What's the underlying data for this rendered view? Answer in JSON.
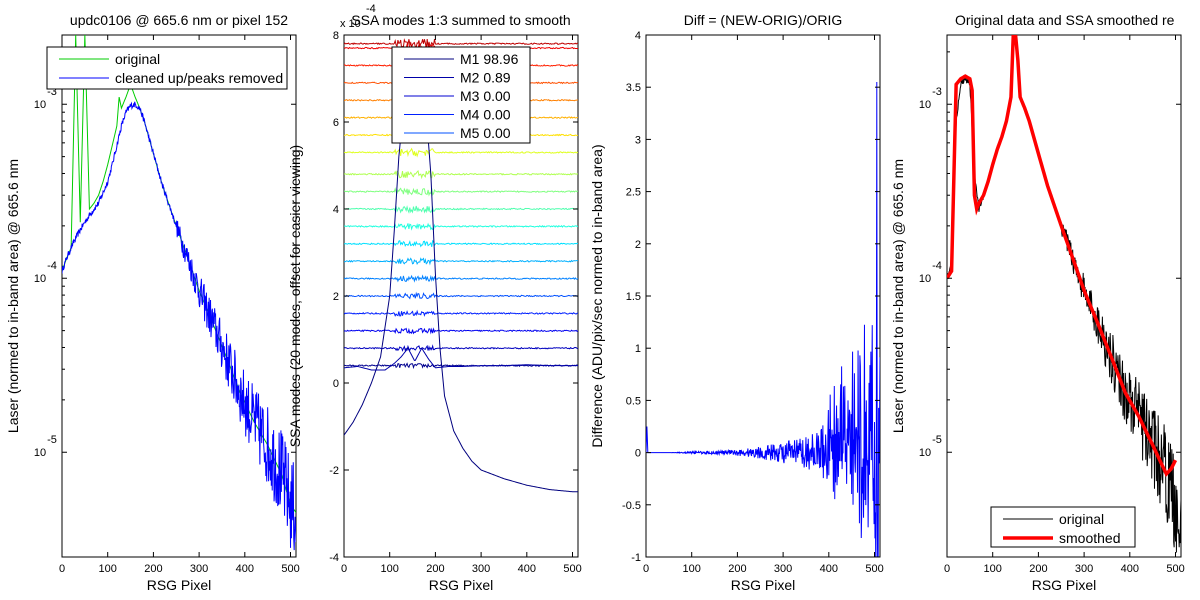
{
  "chart_data": [
    {
      "id": "p1",
      "type": "line",
      "title": "updc0106 @ 665.6 nm or pixel 152",
      "xlabel": "RSG Pixel",
      "ylabel": "Laser (normed to in-band area) @ 665.6 nm",
      "xlim": [
        0,
        512
      ],
      "ylim": [
        2.5e-06,
        0.0025
      ],
      "yscale": "log",
      "xticks": [
        0,
        100,
        200,
        300,
        400,
        500
      ],
      "yticks": [
        {
          "value": 1e-05,
          "mantissa": "10",
          "exp": "-5"
        },
        {
          "value": 0.0001,
          "mantissa": "10",
          "exp": "-4"
        },
        {
          "value": 0.001,
          "mantissa": "10",
          "exp": "-3"
        }
      ],
      "legend_position": "top",
      "series": [
        {
          "name": "original",
          "color": "#00cc00",
          "x": [
            0,
            10,
            20,
            30,
            40,
            50,
            60,
            70,
            80,
            90,
            100,
            110,
            120,
            125,
            130,
            140,
            150,
            160,
            170,
            180,
            200,
            220,
            250,
            280,
            300,
            330,
            360,
            390,
            420,
            450,
            480,
            500,
            512
          ],
          "y": [
            0.00011,
            0.00013,
            0.00015,
            0.0025,
            0.00021,
            0.0025,
            0.00025,
            0.00027,
            0.0003,
            0.00036,
            0.00045,
            0.00058,
            0.00075,
            0.0011,
            0.00095,
            0.0011,
            0.0013,
            0.0011,
            0.00095,
            0.0008,
            0.00052,
            0.00034,
            0.0002,
            0.00012,
            8.5e-05,
            5.5e-05,
            3.5e-05,
            2.2e-05,
            1.5e-05,
            1.1e-05,
            7.5e-06,
            5e-06,
            4.5e-06
          ]
        },
        {
          "name": "cleaned up/peaks removed",
          "color": "#0000ff",
          "x": [
            0,
            10,
            20,
            30,
            40,
            50,
            60,
            70,
            80,
            90,
            100,
            110,
            120,
            130,
            140,
            150,
            160,
            170,
            180,
            200,
            220,
            250,
            280,
            300,
            330,
            360,
            390,
            420,
            450,
            480,
            500,
            512
          ],
          "y": [
            0.00011,
            0.00013,
            0.00015,
            0.00017,
            0.00019,
            0.00021,
            0.00023,
            0.00025,
            0.00027,
            0.00031,
            0.00036,
            0.00045,
            0.00058,
            0.00075,
            0.0009,
            0.00098,
            0.001,
            0.00095,
            0.0008,
            0.00052,
            0.00034,
            0.0002,
            0.00012,
            8.5e-05,
            5.5e-05,
            3.5e-05,
            2.2e-05,
            1.5e-05,
            1.1e-05,
            7.5e-06,
            5e-06,
            4.5e-06
          ]
        }
      ]
    },
    {
      "id": "p2",
      "type": "line",
      "title": "SSA modes 1:3 summed to smooth",
      "exponent_label": "x 10",
      "exponent_power": "-4",
      "xlabel": "RSG Pixel",
      "ylabel": "SSA modes (20 modes, offset for easier viewing)",
      "xlim": [
        0,
        512
      ],
      "ylim": [
        -4,
        8
      ],
      "xticks": [
        0,
        100,
        200,
        300,
        400,
        500
      ],
      "yticks": [
        -4,
        -2,
        0,
        2,
        4,
        6,
        8
      ],
      "legend_position": "top-right",
      "legend": [
        {
          "label": "M1 98.96",
          "color": "#00007f"
        },
        {
          "label": "M2 0.89",
          "color": "#0000a8"
        },
        {
          "label": "M3 0.00",
          "color": "#0000d0"
        },
        {
          "label": "M4 0.00",
          "color": "#0020ff"
        },
        {
          "label": "M5 0.00",
          "color": "#0050ff"
        }
      ],
      "mode_offsets": [
        0.4,
        0.8,
        1.2,
        1.6,
        2.0,
        2.4,
        2.8,
        3.2,
        3.6,
        4.0,
        4.4,
        4.8,
        5.3,
        5.7,
        6.1,
        6.5,
        6.9,
        7.3,
        7.7,
        7.8
      ],
      "mode_colors": [
        "#00008f",
        "#0000bf",
        "#0000ef",
        "#0020ff",
        "#0050ff",
        "#0080ff",
        "#00b0ff",
        "#00e0ff",
        "#20ffdf",
        "#50ffaf",
        "#80ff80",
        "#afff50",
        "#dfff20",
        "#ffe000",
        "#ffb000",
        "#ff8000",
        "#ff5000",
        "#ff2000",
        "#ef0000",
        "#bf0000"
      ],
      "series": [
        {
          "name": "M1",
          "color": "#00007f",
          "x": [
            0,
            20,
            40,
            60,
            80,
            100,
            110,
            120,
            130,
            140,
            160,
            170,
            180,
            190,
            200,
            210,
            220,
            240,
            260,
            280,
            300,
            350,
            400,
            450,
            500,
            512
          ],
          "y": [
            -1.2,
            -0.9,
            -0.5,
            0.0,
            0.6,
            2.0,
            3.5,
            5.2,
            6.3,
            6.5,
            6.5,
            6.5,
            6.2,
            4.8,
            2.5,
            0.8,
            -0.3,
            -1.1,
            -1.5,
            -1.8,
            -2.0,
            -2.2,
            -2.35,
            -2.45,
            -2.5,
            -2.5
          ]
        },
        {
          "name": "M2",
          "color": "#0000a8",
          "x": [
            0,
            30,
            60,
            90,
            110,
            125,
            140,
            155,
            170,
            185,
            200,
            230,
            260,
            300,
            350,
            400,
            450,
            500,
            512
          ],
          "y": [
            0.35,
            0.38,
            0.3,
            0.3,
            0.45,
            0.6,
            0.8,
            0.5,
            0.8,
            0.55,
            0.35,
            0.38,
            0.38,
            0.4,
            0.4,
            0.42,
            0.4,
            0.4,
            0.4
          ]
        }
      ]
    },
    {
      "id": "p3",
      "type": "line",
      "title": "Diff = (NEW-ORIG)/ORIG",
      "xlabel": "RSG Pixel",
      "ylabel": "Difference (ADU/pix/sec normed to in-band area)",
      "xlim": [
        0,
        512
      ],
      "ylim": [
        -1,
        4
      ],
      "xticks": [
        0,
        100,
        200,
        300,
        400,
        500
      ],
      "yticks": [
        -1,
        -0.5,
        0,
        0.5,
        1,
        1.5,
        2,
        2.5,
        3,
        3.5,
        4
      ],
      "series": [
        {
          "name": "diff",
          "color": "#0000ff",
          "x": [
            0,
            2,
            4,
            50,
            100,
            150,
            200,
            250,
            300,
            350,
            380,
            400,
            420,
            440,
            460,
            480,
            490,
            500,
            505,
            510,
            512
          ],
          "y": [
            0,
            0.25,
            0,
            0,
            0,
            0,
            0,
            0,
            0,
            0,
            0.1,
            0.3,
            0.6,
            0.7,
            1.0,
            1.1,
            1.5,
            2.0,
            3.55,
            1.5,
            0.3
          ],
          "spread": [
            0,
            0,
            0,
            0,
            0.01,
            0.015,
            0.03,
            0.06,
            0.1,
            0.15,
            0.22,
            0.3,
            0.35,
            0.45,
            0.55,
            0.6,
            0.65,
            0.7,
            0.9,
            1.0,
            1.0
          ]
        }
      ]
    },
    {
      "id": "p4",
      "type": "line",
      "title": "Original data and SSA smoothed re",
      "xlabel": "RSG Pixel",
      "ylabel": "Laser (normed to in-band area) @ 665.6 nm",
      "xlim": [
        0,
        512
      ],
      "ylim": [
        2.5e-06,
        0.0025
      ],
      "yscale": "log",
      "xticks": [
        0,
        100,
        200,
        300,
        400,
        500
      ],
      "yticks": [
        {
          "value": 1e-05,
          "mantissa": "10",
          "exp": "-5"
        },
        {
          "value": 0.0001,
          "mantissa": "10",
          "exp": "-4"
        },
        {
          "value": 0.001,
          "mantissa": "10",
          "exp": "-3"
        }
      ],
      "legend_position": "bottom",
      "series": [
        {
          "name": "original",
          "color": "#000000",
          "x": [
            0,
            10,
            20,
            30,
            40,
            50,
            60,
            70,
            80,
            90,
            100,
            110,
            120,
            130,
            140,
            145,
            150,
            155,
            160,
            170,
            180,
            200,
            220,
            250,
            280,
            300,
            330,
            360,
            390,
            420,
            450,
            480,
            500,
            512
          ],
          "y": [
            0.0001,
            0.00012,
            0.0008,
            0.0013,
            0.0014,
            0.0013,
            0.0004,
            0.00025,
            0.0003,
            0.00036,
            0.00045,
            0.00055,
            0.00065,
            0.0008,
            0.0011,
            0.0025,
            0.0025,
            0.0018,
            0.0011,
            0.00095,
            0.0008,
            0.00052,
            0.00034,
            0.0002,
            0.00012,
            8.5e-05,
            5.5e-05,
            3.5e-05,
            2.2e-05,
            1.6e-05,
            1.1e-05,
            7.5e-06,
            5e-06,
            4.5e-06
          ]
        },
        {
          "name": "smoothed",
          "color": "#ff0000",
          "x": [
            0,
            10,
            20,
            30,
            40,
            50,
            55,
            60,
            65,
            70,
            80,
            90,
            100,
            110,
            120,
            130,
            140,
            145,
            150,
            155,
            160,
            170,
            180,
            200,
            220,
            250,
            280,
            300,
            330,
            360,
            390,
            420,
            450,
            470,
            480,
            490,
            500
          ],
          "y": [
            0.0001,
            0.00011,
            0.0013,
            0.0014,
            0.00145,
            0.0014,
            0.0012,
            0.0003,
            0.00025,
            0.00027,
            0.0003,
            0.00036,
            0.00045,
            0.00055,
            0.00065,
            0.0008,
            0.0011,
            0.0025,
            0.0025,
            0.0018,
            0.0011,
            0.00095,
            0.0008,
            0.00052,
            0.00034,
            0.0002,
            0.00012,
            8.5e-05,
            5.5e-05,
            3.5e-05,
            2.2e-05,
            1.6e-05,
            1.1e-05,
            8.5e-06,
            7.5e-06,
            8e-06,
            9e-06
          ]
        }
      ]
    }
  ]
}
